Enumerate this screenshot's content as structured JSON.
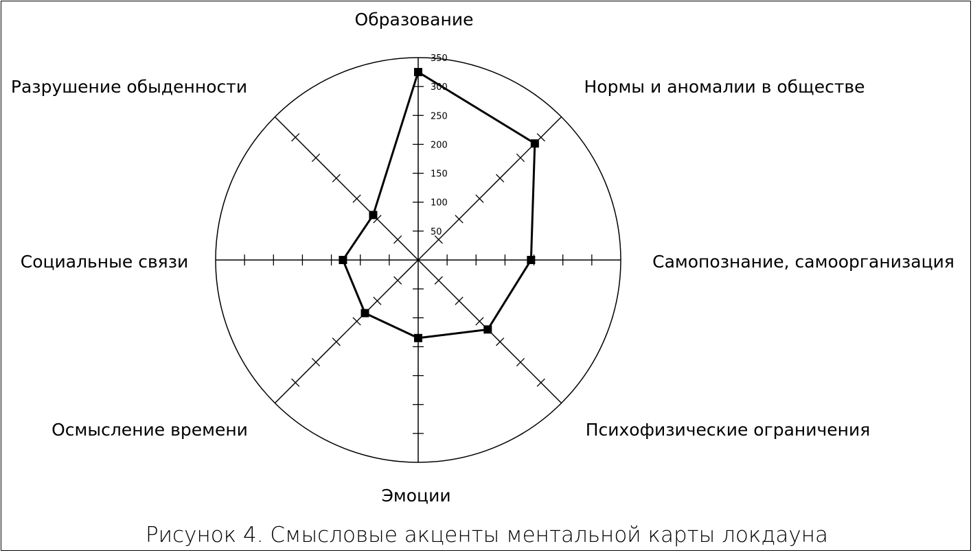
{
  "chart_data": {
    "type": "radar",
    "title": "",
    "caption": "Рисунок 4. Смысловые акценты ментальной карты локдауна",
    "categories": [
      "Образование",
      "Нормы и аномалии в обществе",
      "Самопознание, самоорганизация",
      "Психофизические ограничения",
      "Эмоции",
      "Осмысление времени",
      "Социальные связи",
      "Разрушение обыденности"
    ],
    "values": [
      325,
      285,
      195,
      170,
      135,
      130,
      130,
      110
    ],
    "rlim": [
      0,
      350
    ],
    "ticks": [
      50,
      100,
      150,
      200,
      250,
      300,
      350
    ],
    "tick_labels": [
      "50",
      "100",
      "150",
      "200",
      "250",
      "300",
      "350"
    ],
    "grid": false,
    "line_color": "#000000",
    "marker": "square"
  }
}
